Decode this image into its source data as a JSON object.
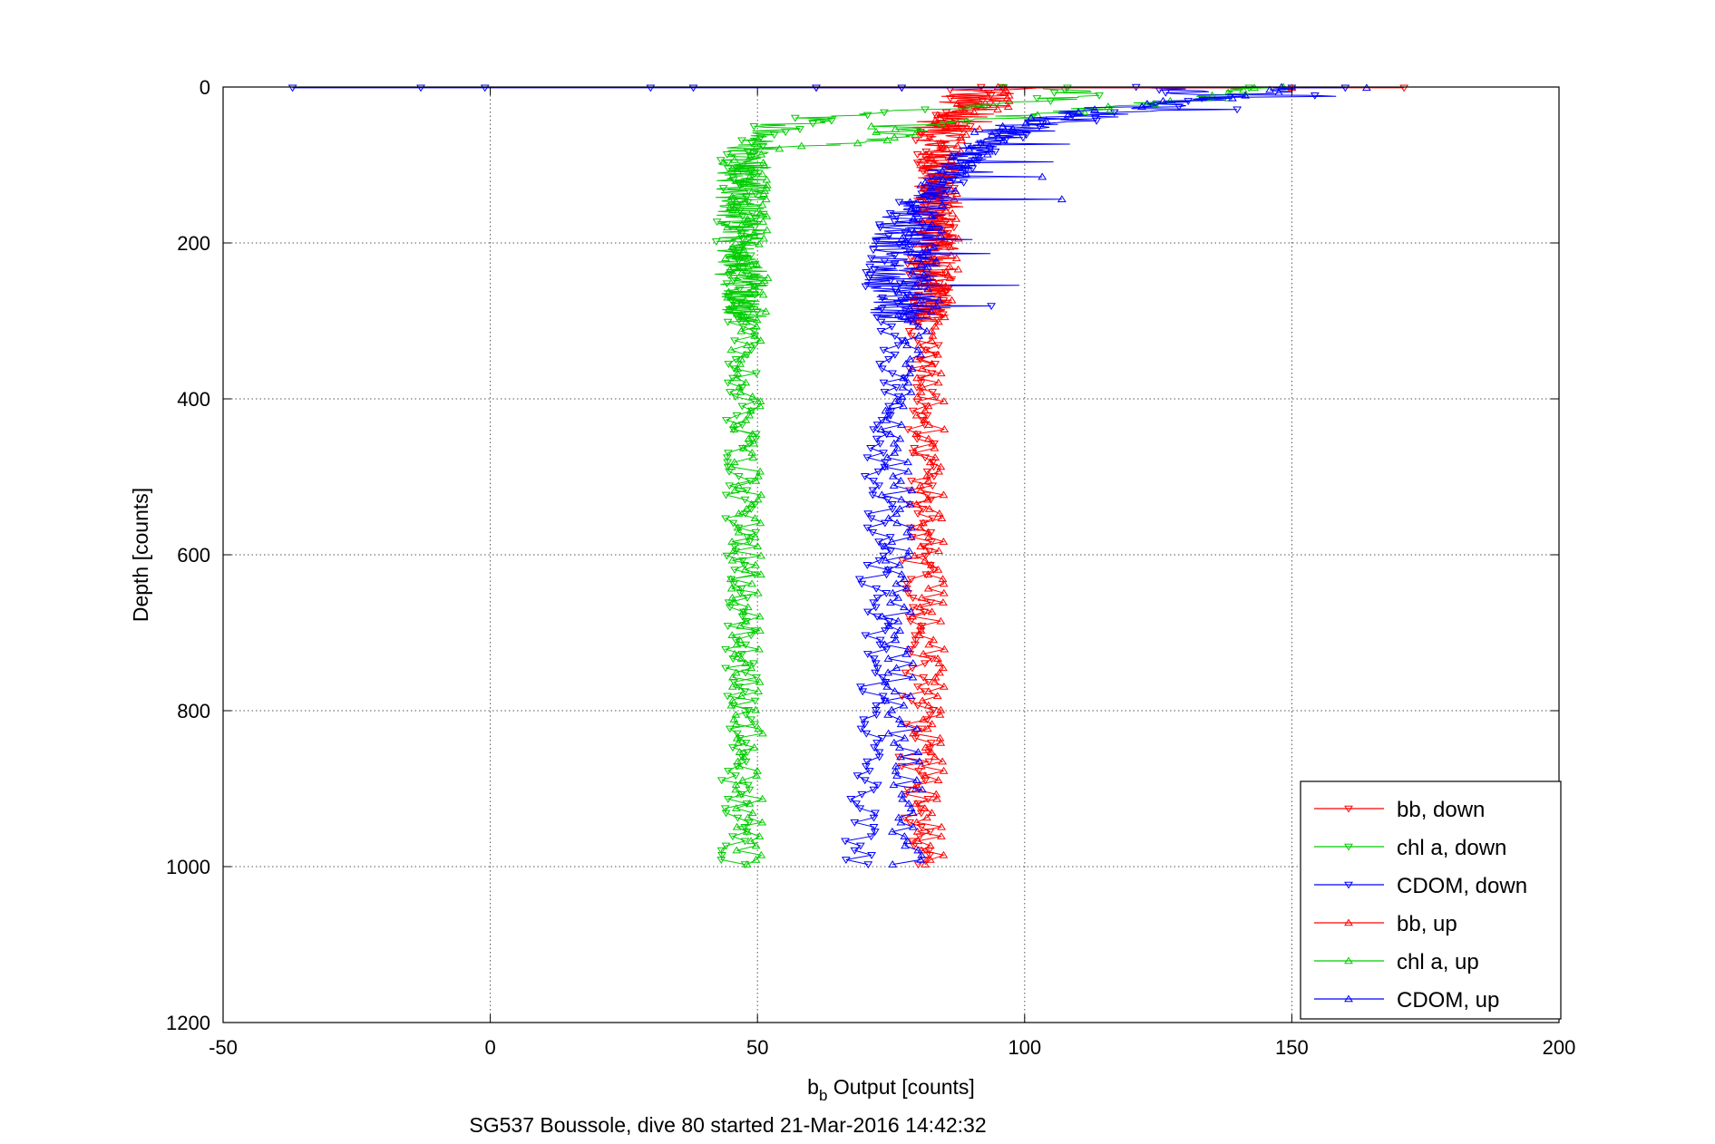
{
  "chart_data": {
    "type": "line",
    "title": "",
    "xlabel_main": "b",
    "xlabel_sub": "b",
    "xlabel_rest": " Output [counts]",
    "ylabel": "Depth [counts]",
    "caption": "SG537 Boussole, dive 80 started 21-Mar-2016 14:42:32",
    "xlim": [
      -50,
      200
    ],
    "ylim": [
      0,
      1200
    ],
    "y_reversed": true,
    "xticks": [
      -50,
      0,
      50,
      100,
      150,
      200
    ],
    "yticks": [
      0,
      200,
      400,
      600,
      800,
      1000,
      1200
    ],
    "xtick_labels": [
      "-50",
      "0",
      "50",
      "100",
      "150",
      "200"
    ],
    "ytick_labels": [
      "0",
      "200",
      "400",
      "600",
      "800",
      "1000",
      "1200"
    ],
    "grid": true,
    "legend_position": "bottom-right",
    "series": [
      {
        "name": "bb, down",
        "color": "#ff0000",
        "marker": "triangle-down",
        "profile": [
          [
            0,
            90
          ],
          [
            5,
            90
          ],
          [
            20,
            88
          ],
          [
            40,
            86
          ],
          [
            60,
            84
          ],
          [
            80,
            83
          ],
          [
            100,
            83
          ],
          [
            140,
            83
          ],
          [
            180,
            83
          ],
          [
            220,
            82
          ],
          [
            260,
            82
          ],
          [
            300,
            81
          ],
          [
            340,
            81
          ],
          [
            400,
            81
          ],
          [
            500,
            81
          ],
          [
            600,
            80
          ],
          [
            700,
            80
          ],
          [
            800,
            80
          ],
          [
            900,
            79
          ],
          [
            1000,
            80
          ]
        ],
        "surface": [
          [
            1,
            61
          ],
          [
            1,
            77
          ],
          [
            1,
            96
          ],
          [
            1,
            171
          ]
        ]
      },
      {
        "name": "chl a, down",
        "color": "#00cc00",
        "marker": "triangle-down",
        "profile": [
          [
            0,
            100
          ],
          [
            10,
            115
          ],
          [
            25,
            90
          ],
          [
            40,
            62
          ],
          [
            50,
            55
          ],
          [
            60,
            52
          ],
          [
            75,
            48
          ],
          [
            90,
            47
          ],
          [
            120,
            46
          ],
          [
            160,
            46
          ],
          [
            200,
            46
          ],
          [
            240,
            46
          ],
          [
            280,
            47
          ],
          [
            300,
            47
          ],
          [
            400,
            47
          ],
          [
            500,
            47
          ],
          [
            600,
            47
          ],
          [
            700,
            47
          ],
          [
            800,
            47
          ],
          [
            900,
            46
          ],
          [
            1000,
            46
          ]
        ],
        "surface": [
          [
            1,
            108
          ],
          [
            1,
            142
          ]
        ]
      },
      {
        "name": "CDOM, down",
        "color": "#0000ff",
        "marker": "triangle-down",
        "profile": [
          [
            0,
            125
          ],
          [
            10,
            135
          ],
          [
            20,
            130
          ],
          [
            40,
            110
          ],
          [
            60,
            98
          ],
          [
            80,
            92
          ],
          [
            100,
            88
          ],
          [
            120,
            85
          ],
          [
            140,
            82
          ],
          [
            160,
            78
          ],
          [
            180,
            76
          ],
          [
            200,
            75
          ],
          [
            230,
            74
          ],
          [
            260,
            74
          ],
          [
            290,
            75
          ],
          [
            300,
            76
          ],
          [
            400,
            75
          ],
          [
            500,
            73
          ],
          [
            600,
            72
          ],
          [
            700,
            72
          ],
          [
            800,
            72
          ],
          [
            900,
            70
          ],
          [
            1000,
            69
          ]
        ],
        "surface": [
          [
            1,
            -37
          ],
          [
            1,
            -13
          ],
          [
            1,
            -1
          ],
          [
            1,
            30
          ],
          [
            1,
            38
          ],
          [
            1,
            61
          ],
          [
            1,
            77
          ],
          [
            1,
            150
          ],
          [
            1,
            160
          ]
        ]
      },
      {
        "name": "bb, up",
        "color": "#ff0000",
        "marker": "triangle-up",
        "profile": [
          [
            1000,
            82
          ],
          [
            900,
            82
          ],
          [
            800,
            82
          ],
          [
            700,
            82
          ],
          [
            600,
            82
          ],
          [
            500,
            82
          ],
          [
            400,
            82
          ],
          [
            320,
            81
          ],
          [
            300,
            82
          ],
          [
            260,
            83
          ],
          [
            220,
            84
          ],
          [
            180,
            84
          ],
          [
            140,
            85
          ],
          [
            100,
            84
          ],
          [
            60,
            86
          ],
          [
            30,
            90
          ],
          [
            10,
            95
          ],
          [
            0,
            97
          ]
        ],
        "surface": [
          [
            1,
            96
          ],
          [
            1,
            150
          ]
        ]
      },
      {
        "name": "chl a, up",
        "color": "#00cc00",
        "marker": "triangle-up",
        "profile": [
          [
            1000,
            48
          ],
          [
            900,
            48
          ],
          [
            800,
            48
          ],
          [
            700,
            48
          ],
          [
            600,
            48
          ],
          [
            500,
            48
          ],
          [
            400,
            48
          ],
          [
            300,
            48
          ],
          [
            250,
            48
          ],
          [
            200,
            48
          ],
          [
            150,
            48
          ],
          [
            100,
            49
          ],
          [
            80,
            49
          ],
          [
            70,
            72
          ],
          [
            60,
            77
          ],
          [
            50,
            75
          ],
          [
            40,
            95
          ],
          [
            30,
            110
          ],
          [
            20,
            125
          ],
          [
            10,
            140
          ],
          [
            0,
            145
          ]
        ],
        "surface": [
          [
            1,
            143
          ]
        ]
      },
      {
        "name": "CDOM, up",
        "color": "#0000ff",
        "marker": "triangle-up",
        "profile": [
          [
            1000,
            78
          ],
          [
            900,
            78
          ],
          [
            800,
            77
          ],
          [
            700,
            76
          ],
          [
            600,
            76
          ],
          [
            500,
            76
          ],
          [
            400,
            76
          ],
          [
            300,
            80
          ],
          [
            280,
            80
          ],
          [
            250,
            80
          ],
          [
            200,
            80
          ],
          [
            150,
            82
          ],
          [
            100,
            86
          ],
          [
            60,
            95
          ],
          [
            30,
            110
          ],
          [
            10,
            140
          ],
          [
            0,
            153
          ]
        ],
        "surface": [
          [
            1,
            164
          ]
        ]
      }
    ]
  }
}
